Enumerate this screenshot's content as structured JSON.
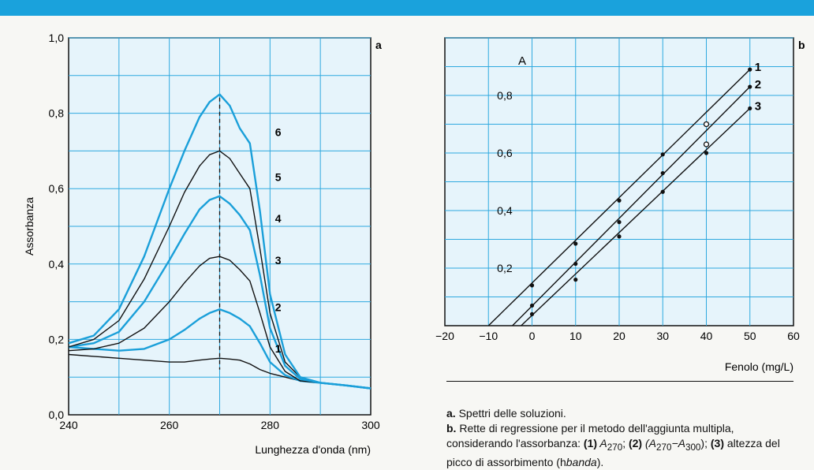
{
  "chart_data": [
    {
      "panel": "a",
      "type": "line",
      "xlabel": "Lunghezza d'onda (nm)",
      "ylabel": "Assorbanza",
      "xlim": [
        240,
        300
      ],
      "ylim": [
        0,
        1.0
      ],
      "xticks": [
        "240",
        "260",
        "280",
        "300"
      ],
      "yticks": [
        "0,0",
        "0,2",
        "0,4",
        "0,6",
        "0,8",
        "1,0"
      ],
      "grid": true,
      "peak_marker_x": 270,
      "series": [
        {
          "name": "1",
          "color": "#111111",
          "x": [
            240,
            245,
            250,
            255,
            260,
            263,
            266,
            268,
            270,
            272,
            274,
            276,
            278,
            280,
            283,
            286,
            290,
            295,
            300
          ],
          "values": [
            0.16,
            0.155,
            0.15,
            0.145,
            0.14,
            0.14,
            0.145,
            0.148,
            0.15,
            0.148,
            0.145,
            0.135,
            0.12,
            0.11,
            0.1,
            0.09,
            0.085,
            0.078,
            0.07
          ]
        },
        {
          "name": "2",
          "color": "#1a9fd9",
          "x": [
            240,
            245,
            250,
            255,
            260,
            263,
            266,
            268,
            270,
            272,
            274,
            276,
            278,
            280,
            283,
            286,
            290,
            295,
            300
          ],
          "values": [
            0.18,
            0.175,
            0.17,
            0.175,
            0.2,
            0.225,
            0.255,
            0.27,
            0.28,
            0.27,
            0.255,
            0.235,
            0.19,
            0.14,
            0.105,
            0.09,
            0.085,
            0.078,
            0.07
          ]
        },
        {
          "name": "3",
          "color": "#111111",
          "x": [
            240,
            245,
            250,
            255,
            260,
            263,
            266,
            268,
            270,
            272,
            274,
            276,
            278,
            280,
            283,
            286,
            290,
            295,
            300
          ],
          "values": [
            0.17,
            0.175,
            0.19,
            0.23,
            0.3,
            0.35,
            0.395,
            0.415,
            0.42,
            0.41,
            0.385,
            0.355,
            0.27,
            0.18,
            0.115,
            0.09,
            0.085,
            0.078,
            0.07
          ]
        },
        {
          "name": "4",
          "color": "#1a9fd9",
          "x": [
            240,
            245,
            250,
            255,
            260,
            263,
            266,
            268,
            270,
            272,
            274,
            276,
            278,
            280,
            283,
            286,
            290,
            295,
            300
          ],
          "values": [
            0.18,
            0.19,
            0.22,
            0.3,
            0.41,
            0.48,
            0.545,
            0.57,
            0.58,
            0.56,
            0.53,
            0.49,
            0.37,
            0.23,
            0.13,
            0.095,
            0.085,
            0.078,
            0.07
          ]
        },
        {
          "name": "5",
          "color": "#111111",
          "x": [
            240,
            245,
            250,
            255,
            260,
            263,
            266,
            268,
            270,
            272,
            274,
            276,
            278,
            280,
            283,
            286,
            290,
            295,
            300
          ],
          "values": [
            0.18,
            0.2,
            0.25,
            0.36,
            0.5,
            0.59,
            0.66,
            0.69,
            0.7,
            0.68,
            0.64,
            0.6,
            0.44,
            0.27,
            0.14,
            0.1,
            0.085,
            0.078,
            0.07
          ]
        },
        {
          "name": "6",
          "color": "#1a9fd9",
          "x": [
            240,
            245,
            250,
            255,
            260,
            263,
            266,
            268,
            270,
            272,
            274,
            276,
            278,
            280,
            283,
            286,
            290,
            295,
            300
          ],
          "values": [
            0.19,
            0.21,
            0.28,
            0.42,
            0.6,
            0.7,
            0.79,
            0.83,
            0.85,
            0.82,
            0.76,
            0.72,
            0.54,
            0.32,
            0.16,
            0.1,
            0.085,
            0.078,
            0.07
          ]
        }
      ]
    },
    {
      "panel": "b",
      "type": "scatter",
      "xlabel": "Fenolo (mg/L)",
      "ylabel": "A",
      "xlim": [
        -20,
        60
      ],
      "ylim": [
        0,
        1.0
      ],
      "xticks": [
        "−20",
        "−10",
        "0",
        "10",
        "20",
        "30",
        "40",
        "50",
        "60"
      ],
      "yticks": [
        "0,2",
        "0,4",
        "0,6",
        "0,8"
      ],
      "grid": true,
      "series": [
        {
          "name": "1",
          "x": [
            0,
            10,
            20,
            30,
            40,
            50
          ],
          "values": [
            0.14,
            0.285,
            0.435,
            0.595,
            0.7,
            0.89
          ],
          "fit": [
            -10.0,
            0.0,
            50,
            0.89
          ]
        },
        {
          "name": "2",
          "x": [
            0,
            10,
            20,
            30,
            40,
            50
          ],
          "values": [
            0.07,
            0.215,
            0.36,
            0.53,
            0.63,
            0.83
          ],
          "fit": [
            -4.5,
            0.0,
            50,
            0.83
          ]
        },
        {
          "name": "3",
          "x": [
            0,
            10,
            20,
            30,
            40,
            50
          ],
          "values": [
            0.04,
            0.16,
            0.31,
            0.465,
            0.6,
            0.755
          ],
          "fit": [
            -2.5,
            0.0,
            50,
            0.755
          ]
        }
      ],
      "open_points": [
        {
          "x": 40,
          "y": 0.7
        },
        {
          "x": 40,
          "y": 0.63
        }
      ]
    }
  ],
  "caption": {
    "a_label": "a.",
    "a_text": " Spettri delle soluzioni.",
    "b_label": "b.",
    "b_text_1": " Rette di regressione per il metodo dell'aggiunta multipla, considerando l'assorbanza: ",
    "n1": "(1)",
    "t1": " A",
    "t1_sub": "270",
    "n2": "(2)",
    "t2": " (A",
    "t2_sub1": "270",
    "t2_mid": "−A",
    "t2_sub2": "300",
    "t2_end": ");",
    "n3": "(3)",
    "t3": " altezza del picco di assorbimento (h",
    "t3_sub": "banda",
    "t3_end": ")."
  }
}
